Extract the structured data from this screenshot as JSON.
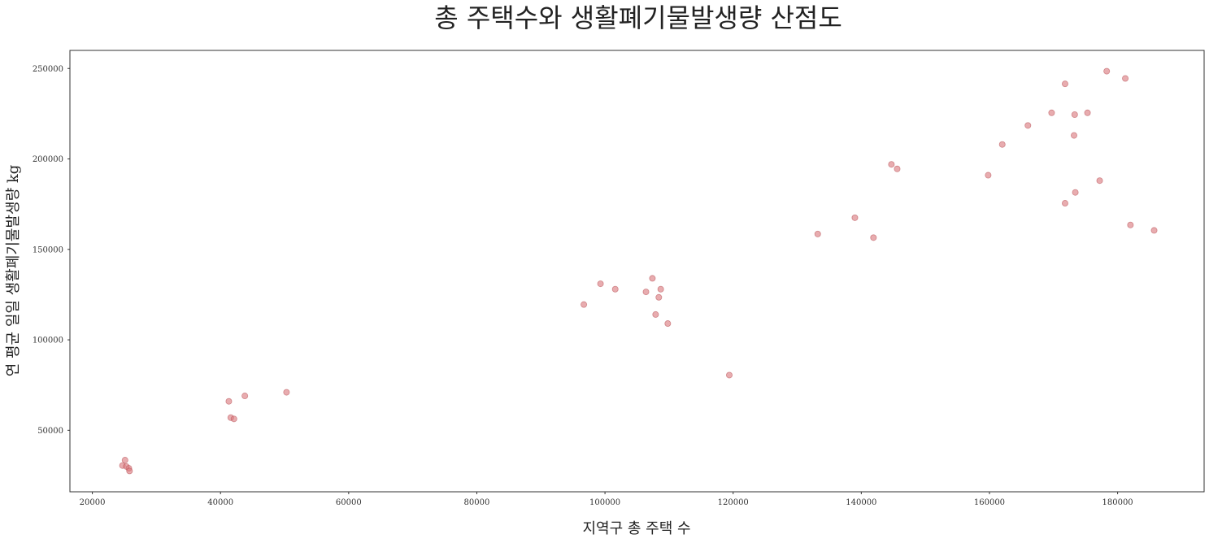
{
  "chart_data": {
    "type": "scatter",
    "title": "총 주택수와 생활폐기물발생량 산점도",
    "xlabel": "지역구 총 주택 수",
    "ylabel": "연 평균 일일 생활폐기물발생량 kg",
    "xlim": [
      16500,
      193500
    ],
    "ylim": [
      16000,
      260000
    ],
    "xticks": [
      20000,
      40000,
      60000,
      80000,
      100000,
      120000,
      140000,
      160000,
      180000
    ],
    "yticks": [
      50000,
      100000,
      150000,
      200000,
      250000
    ],
    "xtick_labels": [
      "20000",
      "40000",
      "60000",
      "80000",
      "100000",
      "120000",
      "140000",
      "160000",
      "180000"
    ],
    "ytick_labels": [
      "50000",
      "100000",
      "150000",
      "200000",
      "250000"
    ],
    "grid": false,
    "marker_color": "#d9747a",
    "marker_opacity": 0.6,
    "points": [
      {
        "x": 24700,
        "y": 30500
      },
      {
        "x": 25100,
        "y": 33500
      },
      {
        "x": 25300,
        "y": 30000
      },
      {
        "x": 25700,
        "y": 29000
      },
      {
        "x": 25800,
        "y": 27500
      },
      {
        "x": 41300,
        "y": 66000
      },
      {
        "x": 41600,
        "y": 57000
      },
      {
        "x": 42100,
        "y": 56300
      },
      {
        "x": 43800,
        "y": 69000
      },
      {
        "x": 50300,
        "y": 71000
      },
      {
        "x": 96700,
        "y": 119500
      },
      {
        "x": 99300,
        "y": 131000
      },
      {
        "x": 101600,
        "y": 128000
      },
      {
        "x": 106400,
        "y": 126500
      },
      {
        "x": 107400,
        "y": 134000
      },
      {
        "x": 107900,
        "y": 114000
      },
      {
        "x": 108400,
        "y": 123500
      },
      {
        "x": 108700,
        "y": 128000
      },
      {
        "x": 109800,
        "y": 109000
      },
      {
        "x": 119400,
        "y": 80500
      },
      {
        "x": 133200,
        "y": 158500
      },
      {
        "x": 139000,
        "y": 167500
      },
      {
        "x": 141900,
        "y": 156500
      },
      {
        "x": 144700,
        "y": 197000
      },
      {
        "x": 145600,
        "y": 194500
      },
      {
        "x": 159800,
        "y": 191000
      },
      {
        "x": 162000,
        "y": 208000
      },
      {
        "x": 166000,
        "y": 218500
      },
      {
        "x": 169700,
        "y": 225500
      },
      {
        "x": 171800,
        "y": 241500
      },
      {
        "x": 171800,
        "y": 175500
      },
      {
        "x": 173200,
        "y": 213000
      },
      {
        "x": 173300,
        "y": 224500
      },
      {
        "x": 173400,
        "y": 181500
      },
      {
        "x": 175300,
        "y": 225500
      },
      {
        "x": 177200,
        "y": 188000
      },
      {
        "x": 178300,
        "y": 248500
      },
      {
        "x": 181200,
        "y": 244500
      },
      {
        "x": 182000,
        "y": 163500
      },
      {
        "x": 185700,
        "y": 160500
      }
    ]
  }
}
